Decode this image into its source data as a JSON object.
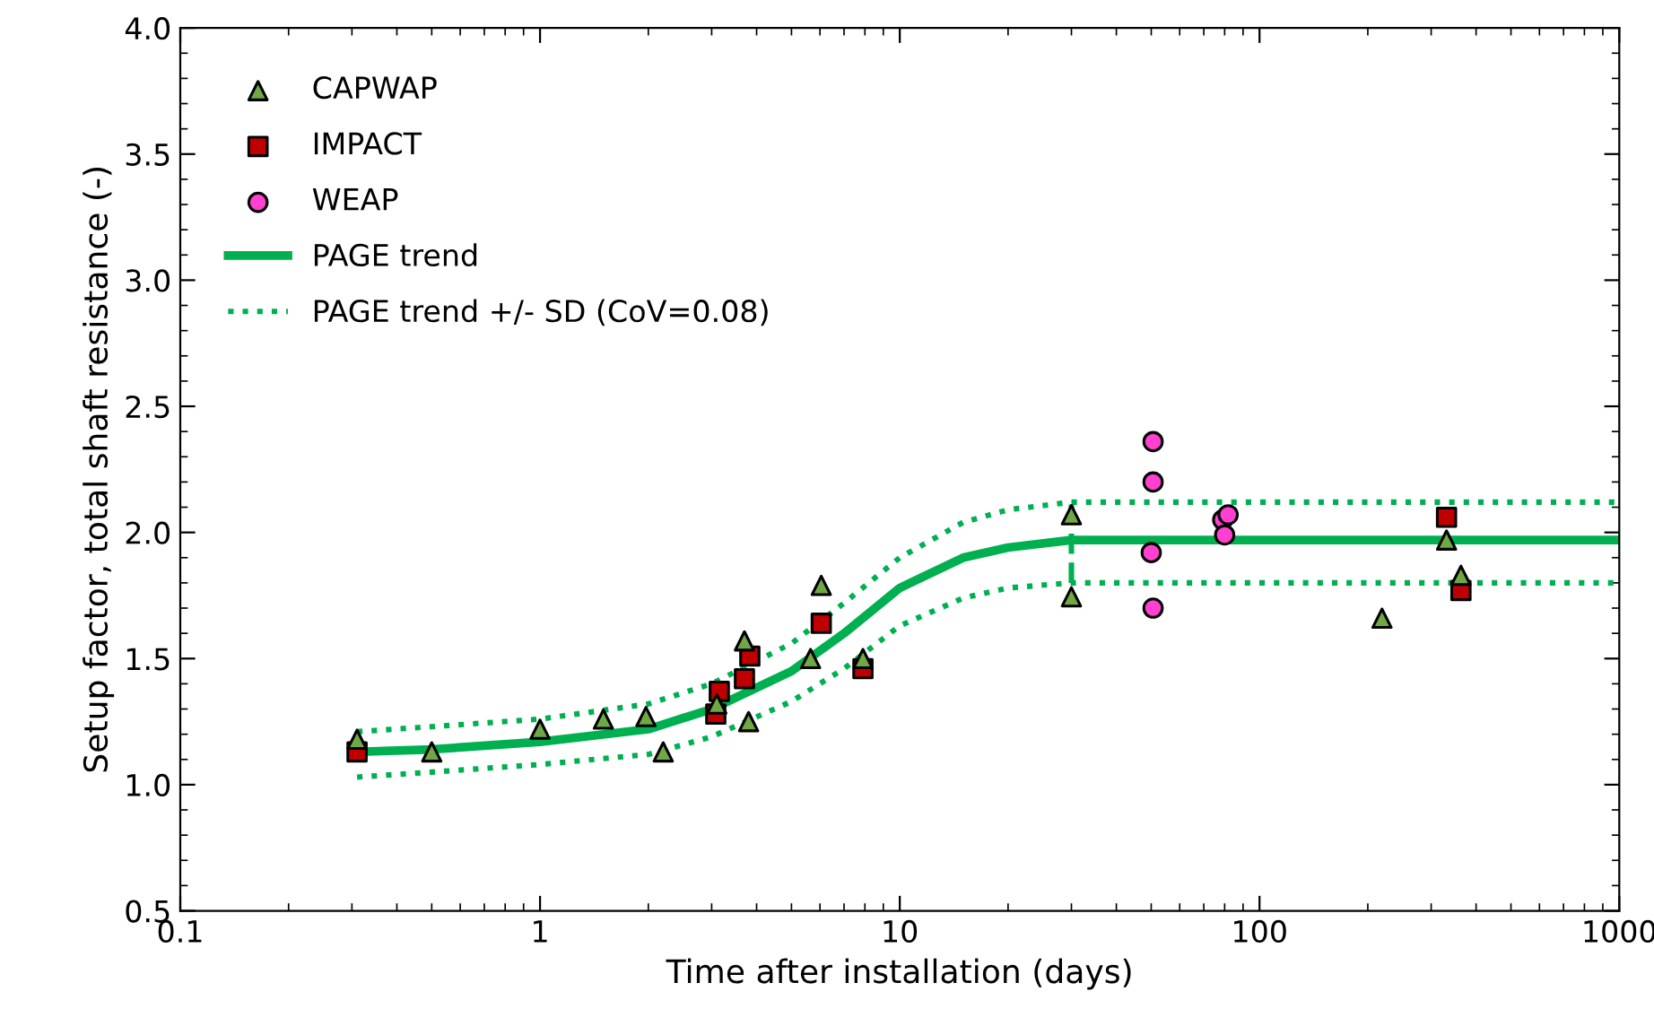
{
  "chart_data": {
    "type": "scatter",
    "xlabel": "Time after installation (days)",
    "ylabel": "Setup factor, total shaft resistance (-)",
    "log": "x",
    "xlim": [
      0.1,
      1000
    ],
    "xticks": [
      0.1,
      1,
      10,
      100,
      1000
    ],
    "ylim": [
      0.5,
      4.0
    ],
    "yticks": [
      {
        "value": 0.5,
        "label": "0.5"
      },
      {
        "value": 1.0,
        "label": "1.0"
      },
      {
        "value": 1.5,
        "label": "1.5"
      },
      {
        "value": 2.0,
        "label": "2.0"
      },
      {
        "value": 2.5,
        "label": "2.5"
      },
      {
        "value": 3.0,
        "label": "3.0"
      },
      {
        "value": 3.5,
        "label": "3.5"
      },
      {
        "value": 4.0,
        "label": "4.0"
      }
    ],
    "grid": false,
    "legend": "top left",
    "series": [
      {
        "name": "CAPWAP",
        "marker": "triangle",
        "color": "#70a845",
        "x": [
          0.31,
          0.5,
          1.0,
          1.5,
          1.97,
          2.2,
          3.1,
          3.7,
          3.8,
          5.65,
          6.05,
          7.9,
          30,
          30,
          219,
          331,
          363
        ],
        "values": [
          1.18,
          1.13,
          1.22,
          1.26,
          1.27,
          1.13,
          1.32,
          1.57,
          1.25,
          1.5,
          1.79,
          1.5,
          2.07,
          1.745,
          1.66,
          1.97,
          1.83
        ]
      },
      {
        "name": "IMPACT",
        "marker": "square",
        "color": "#c00000",
        "x": [
          0.31,
          3.15,
          3.08,
          3.7,
          3.83,
          6.05,
          7.9,
          331,
          363
        ],
        "values": [
          1.13,
          1.37,
          1.28,
          1.42,
          1.51,
          1.64,
          1.46,
          2.06,
          1.77
        ]
      },
      {
        "name": "WEAP",
        "marker": "circle",
        "color": "#ff40d0",
        "x": [
          50.6,
          50.6,
          50.0,
          50.6,
          79,
          80,
          81.8
        ],
        "values": [
          2.36,
          2.2,
          1.92,
          1.7,
          2.05,
          1.99,
          2.07
        ]
      },
      {
        "name": "PAGE trend",
        "type": "line",
        "line_style": "solid",
        "color": "#00b050",
        "x": [
          0.31,
          0.5,
          1,
          2,
          3,
          5,
          7,
          10,
          15,
          20,
          30,
          1000
        ],
        "values": [
          1.13,
          1.14,
          1.17,
          1.22,
          1.3,
          1.45,
          1.6,
          1.78,
          1.9,
          1.94,
          1.97,
          1.97
        ]
      },
      {
        "name": "PAGE trend +/- SD (CoV=0.08)",
        "type": "line",
        "line_style": "dotted",
        "color": "#00b050",
        "x": [
          0.31,
          0.5,
          1,
          2,
          3,
          5,
          7,
          10,
          15,
          20,
          30,
          1000
        ],
        "values": [
          1.21,
          1.23,
          1.26,
          1.32,
          1.4,
          1.56,
          1.72,
          1.9,
          2.04,
          2.09,
          2.12,
          2.12
        ]
      },
      {
        "type": "line",
        "line_style": "dotted",
        "color": "#00b050",
        "x": [
          0.31,
          0.5,
          1,
          2,
          3,
          5,
          7,
          10,
          15,
          20,
          30,
          1000
        ],
        "values": [
          1.03,
          1.05,
          1.08,
          1.12,
          1.19,
          1.33,
          1.46,
          1.63,
          1.74,
          1.78,
          1.8,
          1.8
        ]
      },
      {
        "type": "line",
        "line_style": "dashed",
        "color": "#00b050",
        "x": [
          30,
          30
        ],
        "values": [
          1.8,
          2.12
        ]
      }
    ]
  }
}
